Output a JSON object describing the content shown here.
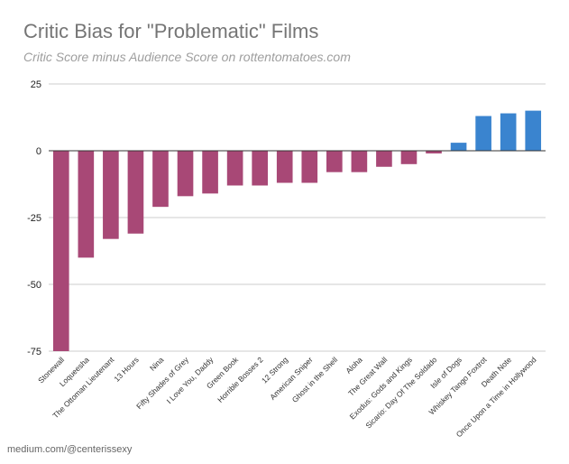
{
  "header": {
    "title": "Critic Bias for \"Problematic\" Films",
    "subtitle": "Critic Score minus Audience Score on rottentomatoes.com"
  },
  "footer": {
    "source": "medium.com/@centerissexy"
  },
  "colors": {
    "negative_bar": "#A84876",
    "positive_bar": "#3A84CF",
    "gridline": "#CCCCCC",
    "zero_line": "#333333"
  },
  "chart_data": {
    "type": "bar",
    "title": "Critic Bias for \"Problematic\" Films",
    "subtitle": "Critic Score minus Audience Score on rottentomatoes.com",
    "xlabel": "",
    "ylabel": "",
    "ylim": [
      -75,
      25
    ],
    "yticks": [
      25,
      0,
      -25,
      -50,
      -75
    ],
    "grid": true,
    "legend": "none",
    "categories": [
      "Stonewall",
      "Loqueesha",
      "The Ottoman Lieutenant",
      "13 Hours",
      "Nina",
      "Fifty Shades of Grey",
      "I Love You, Daddy",
      "Green Book",
      "Horrible Bosses 2",
      "12 Strong",
      "American Sniper",
      "Ghost in the Shell",
      "Aloha",
      "The Great Wall",
      "Exodus: Gods and Kings",
      "Sicario: Day Of The Soldado",
      "Isle of Dogs",
      "Whiskey Tango Foxtrot",
      "Death Note",
      "Once Upon a Time in Hollywood"
    ],
    "values": [
      -75,
      -40,
      -33,
      -31,
      -21,
      -17,
      -16,
      -13,
      -13,
      -12,
      -12,
      -8,
      -8,
      -6,
      -5,
      -1,
      3,
      13,
      14,
      15
    ]
  }
}
